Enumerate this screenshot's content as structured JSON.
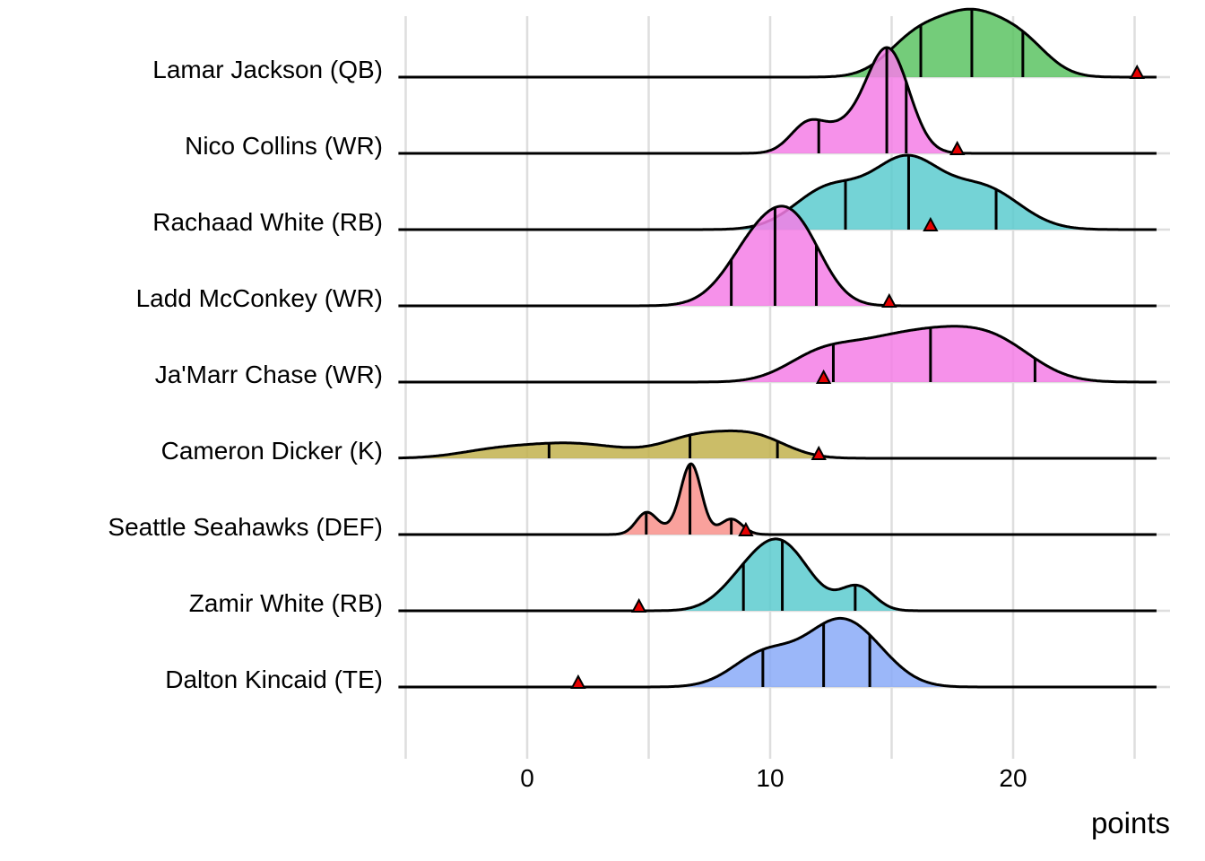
{
  "chart_data": {
    "type": "ridgeline",
    "title": "",
    "xlabel": "points",
    "ylabel": "",
    "xlim": [
      -5.3,
      26.3
    ],
    "x_ticks": [
      0,
      10,
      20
    ],
    "x_tick_labels": [
      "0",
      "10",
      "20"
    ],
    "grid": true,
    "legend": "none",
    "marker_color": "#e60000",
    "series": [
      {
        "name": "Lamar Jackson (QB)",
        "color": "#5cc363",
        "density": [
          [
            16.0,
            1.2,
            0.55
          ],
          [
            18.3,
            1.3,
            0.85
          ],
          [
            20.4,
            1.1,
            0.45
          ]
        ],
        "quantiles": [
          16.2,
          18.3,
          20.4
        ],
        "actual": 25.1
      },
      {
        "name": "Nico Collins (WR)",
        "color": "#f47ee6",
        "density": [
          [
            11.5,
            0.7,
            0.35
          ],
          [
            14.9,
            0.85,
            1.4
          ],
          [
            13.3,
            1.2,
            0.4
          ]
        ],
        "quantiles": [
          12.0,
          14.8,
          15.6
        ],
        "actual": 17.7
      },
      {
        "name": "Rachaad White (RB)",
        "color": "#5ccbcf",
        "density": [
          [
            12.4,
            1.4,
            0.6
          ],
          [
            15.6,
            1.4,
            1.0
          ],
          [
            18.8,
            1.5,
            0.6
          ]
        ],
        "quantiles": [
          13.1,
          15.7,
          19.3
        ],
        "actual": 16.6
      },
      {
        "name": "Ladd McConkey (WR)",
        "color": "#f47ee6",
        "density": [
          [
            9.6,
            1.3,
            1.0
          ],
          [
            11.2,
            1.1,
            0.85
          ]
        ],
        "quantiles": [
          8.4,
          10.2,
          11.9
        ],
        "actual": 14.9
      },
      {
        "name": "Ja'Marr Chase (WR)",
        "color": "#f47ee6",
        "density": [
          [
            12.0,
            1.4,
            0.35
          ],
          [
            14.9,
            1.8,
            0.55
          ],
          [
            19.3,
            1.6,
            0.55
          ],
          [
            17.2,
            1.5,
            0.35
          ]
        ],
        "quantiles": [
          12.6,
          16.6,
          20.9
        ],
        "actual": 12.2
      },
      {
        "name": "Cameron Dicker (K)",
        "color": "#c2b24e",
        "density": [
          [
            1.8,
            2.2,
            0.22
          ],
          [
            7.0,
            1.4,
            0.3
          ],
          [
            9.4,
            1.3,
            0.3
          ],
          [
            -1.5,
            1.5,
            0.08
          ]
        ],
        "quantiles": [
          0.9,
          6.7,
          10.3
        ],
        "actual": 12.0
      },
      {
        "name": "Seattle Seahawks (DEF)",
        "color": "#f8918b",
        "density": [
          [
            4.9,
            0.42,
            0.3
          ],
          [
            6.75,
            0.42,
            1.0
          ],
          [
            8.4,
            0.45,
            0.23
          ],
          [
            6.0,
            0.8,
            0.08
          ]
        ],
        "quantiles": [
          4.9,
          6.7,
          8.4
        ],
        "actual": 9.0
      },
      {
        "name": "Zamir White (RB)",
        "color": "#5ccbcf",
        "density": [
          [
            10.4,
            1.2,
            1.0
          ],
          [
            13.6,
            0.7,
            0.35
          ],
          [
            8.7,
            1.0,
            0.25
          ]
        ],
        "quantiles": [
          8.9,
          10.5,
          13.5
        ],
        "actual": 4.6
      },
      {
        "name": "Dalton Kincaid (TE)",
        "color": "#89aaf8",
        "density": [
          [
            9.8,
            1.3,
            0.5
          ],
          [
            12.7,
            1.3,
            0.85
          ],
          [
            14.3,
            1.2,
            0.3
          ]
        ],
        "quantiles": [
          9.7,
          12.2,
          14.1
        ],
        "actual": 2.1
      }
    ]
  }
}
